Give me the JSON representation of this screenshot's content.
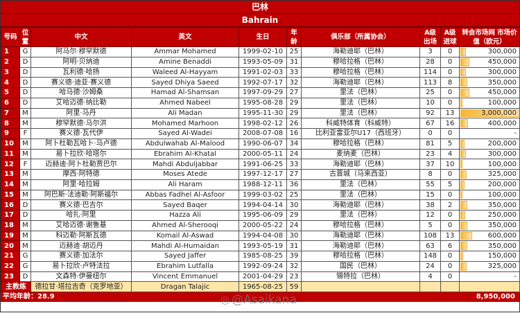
{
  "title_cn": "巴林",
  "title_en": "Bahrain",
  "headers": {
    "num": "号码",
    "pos": "位置",
    "cn": "中文",
    "en": "英文",
    "dob": "生日",
    "age": "年龄",
    "club": "俱乐部（所属协会）",
    "apps": "A级出场",
    "goals": "A级进球",
    "value": "转会市场网 市场价值（欧元）"
  },
  "value_max": 3000000,
  "players": [
    {
      "num": "1",
      "pos": "G",
      "cn": "阿马尔·穆罕默德",
      "en": "Ammar Mohamed",
      "dob": "1999-02-10",
      "age": "25",
      "club": "海勒迪耶（巴林）",
      "apps": "3",
      "goals": "0",
      "value": "300,000",
      "v": 300000
    },
    {
      "num": "2",
      "pos": "D",
      "cn": "阿明·贝纳迪",
      "en": "Amine Benaddi",
      "dob": "1993-05-09",
      "age": "31",
      "club": "穆哈拉格（巴林）",
      "apps": "28",
      "goals": "0",
      "value": "450,000",
      "v": 450000
    },
    {
      "num": "3",
      "pos": "D",
      "cn": "瓦利德·哈扬",
      "en": "Waleed Al-Hayyam",
      "dob": "1991-02-03",
      "age": "33",
      "club": "穆哈拉格（巴林）",
      "apps": "114",
      "goals": "0",
      "value": "300,000",
      "v": 300000
    },
    {
      "num": "4",
      "pos": "D",
      "cn": "赛义德·迪亚·赛义德",
      "en": "Sayed Dhiya Saeed",
      "dob": "1992-07-17",
      "age": "32",
      "club": "海勒迪耶（巴林）",
      "apps": "113",
      "goals": "8",
      "value": "350,000",
      "v": 350000
    },
    {
      "num": "5",
      "pos": "D",
      "cn": "哈马德·沙姆桑",
      "en": "Hamad Al-Shamsan",
      "dob": "1997-09-29",
      "age": "27",
      "club": "里法（巴林）",
      "apps": "25",
      "goals": "0",
      "value": "450,000",
      "v": 450000
    },
    {
      "num": "6",
      "pos": "D",
      "cn": "艾哈迈德·纳比勒",
      "en": "Ahmed Nabeel",
      "dob": "1995-08-28",
      "age": "29",
      "club": "里法（巴林）",
      "apps": "10",
      "goals": "0",
      "value": "100,000",
      "v": 100000
    },
    {
      "num": "7",
      "pos": "M",
      "cn": "阿里·马丹",
      "en": "Ali Madan",
      "dob": "1995-11-30",
      "age": "29",
      "club": "里法（巴林）",
      "apps": "92",
      "goals": "13",
      "value": "3,000,000",
      "v": 3000000
    },
    {
      "num": "8",
      "pos": "M",
      "cn": "穆罕默德·马尔洪",
      "en": "Mohamed Marhoon",
      "dob": "1998-02-12",
      "age": "26",
      "club": "科威特体育（科威特）",
      "apps": "67",
      "goals": "16",
      "value": "400,000",
      "v": 400000
    },
    {
      "num": "9",
      "pos": "F",
      "cn": "赛义德·瓦代伊",
      "en": "Sayed Al-Wadei",
      "dob": "2008-07-08",
      "age": "16",
      "club": "比利亚雷亚尔U17（西班牙）",
      "apps": "0",
      "goals": "0",
      "value": "-",
      "v": 0
    },
    {
      "num": "10",
      "pos": "M",
      "cn": "阿卜杜勒瓦哈卜·马卢德",
      "en": "Abdulwahab Al-Malood",
      "dob": "1990-06-07",
      "age": "34",
      "club": "穆哈拉格（巴林）",
      "apps": "81",
      "goals": "5",
      "value": "200,000",
      "v": 200000
    },
    {
      "num": "11",
      "pos": "M",
      "cn": "易卜拉欣·哈塔尔",
      "en": "Ebrahim Al-Khatal",
      "dob": "2000-05-11",
      "age": "24",
      "club": "麦纳麦（巴林）",
      "apps": "23",
      "goals": "4",
      "value": "300,000",
      "v": 300000
    },
    {
      "num": "12",
      "pos": "F",
      "cn": "迈赫迪·阿卜杜勒贾巴尔",
      "en": "Mahdi Abduljabbar",
      "dob": "1991-06-25",
      "age": "33",
      "club": "海勒迪耶（巴林）",
      "apps": "37",
      "goals": "10",
      "value": "100,000",
      "v": 100000
    },
    {
      "num": "13",
      "pos": "M",
      "cn": "摩西·阿特德",
      "en": "Moses Atede",
      "dob": "1997-12-17",
      "age": "27",
      "club": "古晋城（马来西亚）",
      "apps": "8",
      "goals": "0",
      "value": "325,000",
      "v": 325000
    },
    {
      "num": "14",
      "pos": "M",
      "cn": "阿里·哈拉姆",
      "en": "Ali Haram",
      "dob": "1988-12-11",
      "age": "36",
      "club": "里法（巴林）",
      "apps": "55",
      "goals": "5",
      "value": "200,000",
      "v": 200000
    },
    {
      "num": "15",
      "pos": "M",
      "cn": "阿巴斯·法迪勒·阿斯福尔",
      "en": "Abbas Fadhel Al-Asfoor",
      "dob": "1999-03-02",
      "age": "25",
      "club": "里法（巴林）",
      "apps": "15",
      "goals": "0",
      "value": "100,000",
      "v": 100000
    },
    {
      "num": "16",
      "pos": "D",
      "cn": "赛义德·巴吉尔",
      "en": "Sayed Baqer",
      "dob": "1994-04-14",
      "age": "30",
      "club": "海勒迪耶（巴林）",
      "apps": "38",
      "goals": "2",
      "value": "350,000",
      "v": 350000
    },
    {
      "num": "17",
      "pos": "D",
      "cn": "哈扎·阿里",
      "en": "Hazza Ali",
      "dob": "1995-06-09",
      "age": "29",
      "club": "里法（巴林）",
      "apps": "12",
      "goals": "0",
      "value": "250,000",
      "v": 250000
    },
    {
      "num": "18",
      "pos": "M",
      "cn": "艾哈迈德·谢鲁基",
      "en": "Ahmed Al-Sherooqi",
      "dob": "2000-05-22",
      "age": "24",
      "club": "穆哈拉格（巴林）",
      "apps": "5",
      "goals": "0",
      "value": "350,000",
      "v": 350000
    },
    {
      "num": "19",
      "pos": "M",
      "cn": "科迈勒·阿斯瓦德",
      "en": "Komail Al-Aswad",
      "dob": "1994-04-08",
      "age": "30",
      "club": "海勒迪耶（巴林）",
      "apps": "108",
      "goals": "13",
      "value": "600,000",
      "v": 600000
    },
    {
      "num": "20",
      "pos": "M",
      "cn": "迈赫迪·胡迈丹",
      "en": "Mahdi Al-Humaidan",
      "dob": "1993-05-19",
      "age": "31",
      "club": "海勒迪耶（巴林）",
      "apps": "63",
      "goals": "6",
      "value": "350,000",
      "v": 350000
    },
    {
      "num": "21",
      "pos": "G",
      "cn": "赛义德·加法尔",
      "en": "Sayed Jaffer",
      "dob": "1985-08-25",
      "age": "39",
      "club": "穆哈拉格（巴林）",
      "apps": "148",
      "goals": "0",
      "value": "150,000",
      "v": 150000
    },
    {
      "num": "22",
      "pos": "G",
      "cn": "易卜拉欣·卢特法拉",
      "en": "Ebrahim Lutfalla",
      "dob": "1992-09-24",
      "age": "32",
      "club": "国民（巴林）",
      "apps": "24",
      "goals": "0",
      "value": "325,000",
      "v": 325000
    },
    {
      "num": "23",
      "pos": "D",
      "cn": "文森特·伊曼纽尔",
      "en": "Vincent Emmanuel",
      "dob": "2001-04-29",
      "age": "23",
      "club": "锡特拉（巴林）",
      "apps": "4",
      "goals": "0",
      "value": "-",
      "v": 0
    }
  ],
  "coach": {
    "label": "主教练",
    "cn": "德拉甘·塔拉吉奇（克罗地亚）",
    "en": "Dragan Talajic",
    "dob": "1965-08-25",
    "age": "59"
  },
  "footer": {
    "avg_age": "平均年龄：28.9",
    "total_value": "8,950,000"
  },
  "watermark": "@Asaikana",
  "colors": {
    "header_red": "#C00000",
    "coach_yellow": "#FDE6A8",
    "bar": "#F6B530"
  }
}
